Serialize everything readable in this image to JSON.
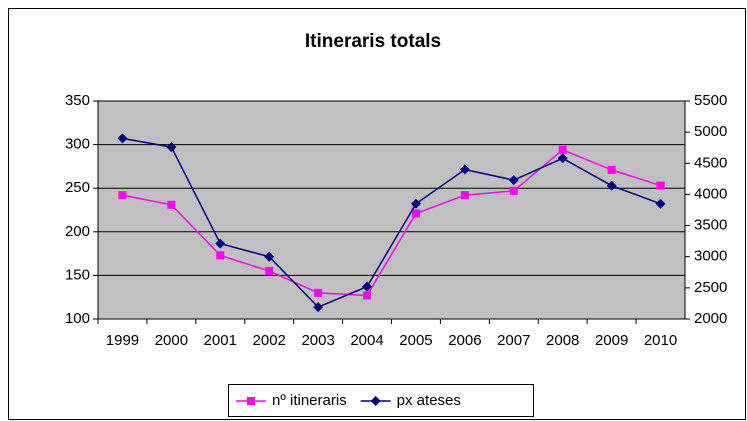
{
  "chart_data": {
    "type": "line",
    "title": "Itineraris totals",
    "categories": [
      "1999",
      "2000",
      "2001",
      "2002",
      "2003",
      "2004",
      "2005",
      "2006",
      "2007",
      "2008",
      "2009",
      "2010"
    ],
    "series": [
      {
        "name": "nº itineraris",
        "color": "#ff00ff",
        "marker": "square",
        "values": [
          242,
          231,
          173,
          155,
          130,
          127,
          221,
          242,
          247,
          294,
          271,
          253
        ]
      },
      {
        "name": "px ateses",
        "color": "#000080",
        "marker": "diamond",
        "axis": "y2",
        "values": [
          4900,
          4760,
          3210,
          3000,
          2190,
          2520,
          3850,
          4400,
          4230,
          4580,
          4140,
          3850
        ]
      }
    ],
    "ylim": [
      100,
      350
    ],
    "yticks": [
      100,
      150,
      200,
      250,
      300,
      350
    ],
    "y2lim": [
      2000,
      5500
    ],
    "y2ticks": [
      2000,
      2500,
      3000,
      3500,
      4000,
      4500,
      5000,
      5500
    ],
    "grid": true,
    "legend": "bottom"
  }
}
